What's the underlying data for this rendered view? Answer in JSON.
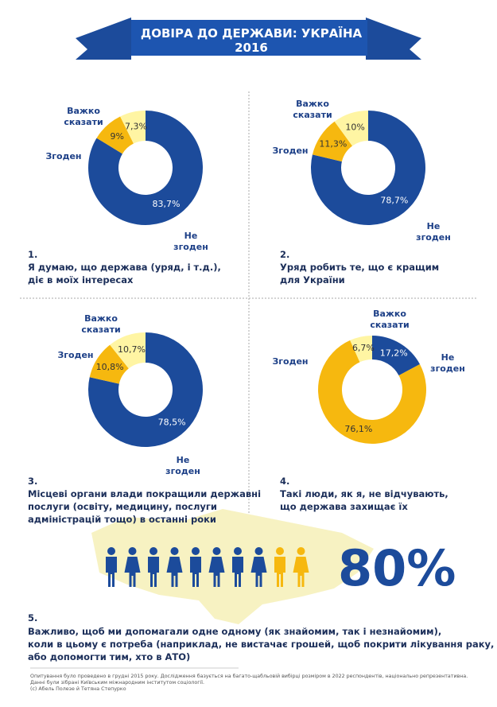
{
  "header": {
    "title": "ДОВІРА ДО ДЕРЖАВИ: УКРАЇНА 2016"
  },
  "chart_data": [
    {
      "type": "pie",
      "donut": true,
      "categories": [
        "Не згоден",
        "Згоден",
        "Важко сказати"
      ],
      "values": [
        83.7,
        9,
        7.3
      ],
      "value_labels": [
        "83,7%",
        "9%",
        "7,3%"
      ],
      "colors": [
        "#1c4b9b",
        "#f6b80f",
        "#fff5a3"
      ],
      "number": "1.",
      "caption": "Я думаю, що держава (уряд, і т.д.),\nдіє в моїх інтересах"
    },
    {
      "type": "pie",
      "donut": true,
      "categories": [
        "Не згоден",
        "Згоден",
        "Важко сказати"
      ],
      "values": [
        78.7,
        11.3,
        10
      ],
      "value_labels": [
        "78,7%",
        "11,3%",
        "10%"
      ],
      "colors": [
        "#1c4b9b",
        "#f6b80f",
        "#fff5a3"
      ],
      "number": "2.",
      "caption": "Уряд робить те, що є кращим\nдля України"
    },
    {
      "type": "pie",
      "donut": true,
      "categories": [
        "Не згоден",
        "Згоден",
        "Важко сказати"
      ],
      "values": [
        78.5,
        10.8,
        10.7
      ],
      "value_labels": [
        "78,5%",
        "10,8%",
        "10,7%"
      ],
      "colors": [
        "#1c4b9b",
        "#f6b80f",
        "#fff5a3"
      ],
      "number": "3.",
      "caption": "Місцеві органи влади покращили державні\nпослуги (освіту, медицину, послуги\nадміністрацій тощо)  в останні роки"
    },
    {
      "type": "pie",
      "donut": true,
      "categories": [
        "Не згоден",
        "Згоден",
        "Важко сказати"
      ],
      "values": [
        17.2,
        76.1,
        6.7
      ],
      "value_labels": [
        "17,2%",
        "76,1%",
        "6,7%"
      ],
      "colors": [
        "#1c4b9b",
        "#f6b80f",
        "#fff5a3"
      ],
      "number": "4.",
      "caption": "Такі люди, як я, не відчувають,\nщо держава захищає їх"
    },
    {
      "type": "pictogram",
      "value": 80,
      "value_label": "80%",
      "colors": [
        "#1c4b9b",
        "#f6b80f"
      ],
      "number": "5.",
      "caption": "Важливо, щоб ми допомагали одне одному (як знайомим, так і незнайомим),\nколи в цьому є потреба (наприклад, не вистачає грошей, щоб покрити лікування раку,\nабо допомогти тим, хто в АТО)"
    }
  ],
  "footnote": "Опитування було проведено в грудні 2015 року. Дослідження базується на багато-щабльовій вибірці розміром в 2022 респондентів, національно репрезентативна.\nДанні були зібрані Київським міжнародним інститутом соціології.\n(с) Абель Полезе й Тетяна Степурко"
}
